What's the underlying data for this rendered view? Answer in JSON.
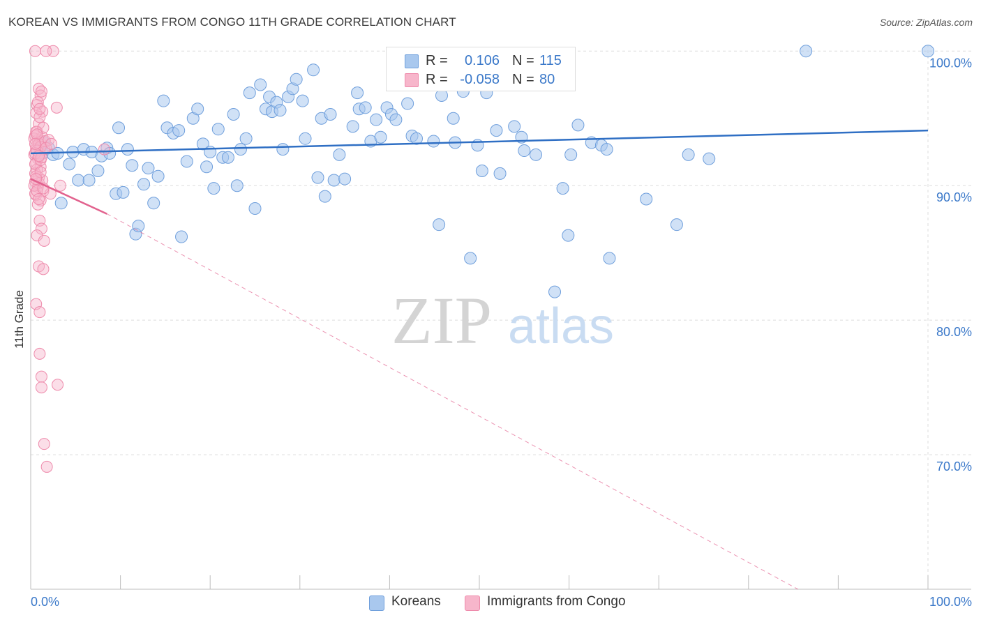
{
  "title": "KOREAN VS IMMIGRANTS FROM CONGO 11TH GRADE CORRELATION CHART",
  "source": "Source: ZipAtlas.com",
  "watermark": {
    "zip": "ZIP",
    "atlas": "atlas"
  },
  "legend": {
    "rows": [
      {
        "r_label": "R =",
        "r_value": "0.106",
        "n_label": "N =",
        "n_value": "115"
      },
      {
        "r_label": "R =",
        "r_value": "-0.058",
        "n_label": "N =",
        "n_value": "80"
      }
    ]
  },
  "bottom_legend": {
    "koreans": "Koreans",
    "congo": "Immigrants from Congo"
  },
  "colors": {
    "korean_fill": "#a9c8ee",
    "korean_stroke": "#6f9fdc",
    "korean_line": "#2f6fc4",
    "congo_fill": "#f7b6cb",
    "congo_stroke": "#ee8aab",
    "congo_line": "#e2628e",
    "axis_text": "#3a78c9",
    "grid": "#dcdcdc"
  },
  "chart_data": {
    "type": "scatter",
    "title": "KOREAN VS IMMIGRANTS FROM CONGO 11TH GRADE CORRELATION CHART",
    "xlabel": "",
    "ylabel": "11th Grade",
    "xlim": [
      0,
      100
    ],
    "ylim": [
      60,
      101
    ],
    "x_tick_labels": [
      "0.0%",
      "100.0%"
    ],
    "y_tick_labels": [
      {
        "value": 70,
        "label": "70.0%"
      },
      {
        "value": 80,
        "label": "80.0%"
      },
      {
        "value": 90,
        "label": "90.0%"
      },
      {
        "value": 100,
        "label": "100.0%"
      }
    ],
    "grid": true,
    "series": [
      {
        "name": "Koreans",
        "trend": {
          "x": [
            0,
            100
          ],
          "y": [
            92.4,
            94.1
          ],
          "style": "solid"
        },
        "points": [
          [
            1.0,
            92.7
          ],
          [
            1.3,
            92.4
          ],
          [
            1.5,
            93.2
          ],
          [
            2.0,
            92.8
          ],
          [
            2.5,
            92.3
          ],
          [
            3.0,
            92.4
          ],
          [
            3.4,
            88.7
          ],
          [
            4.3,
            91.6
          ],
          [
            4.7,
            92.5
          ],
          [
            5.3,
            90.4
          ],
          [
            5.9,
            92.7
          ],
          [
            6.5,
            90.4
          ],
          [
            6.8,
            92.5
          ],
          [
            7.5,
            91.1
          ],
          [
            7.9,
            92.2
          ],
          [
            8.5,
            92.8
          ],
          [
            8.8,
            92.4
          ],
          [
            9.5,
            89.4
          ],
          [
            9.8,
            94.3
          ],
          [
            10.3,
            89.5
          ],
          [
            10.8,
            92.7
          ],
          [
            11.3,
            91.5
          ],
          [
            11.7,
            86.4
          ],
          [
            12.0,
            87.0
          ],
          [
            12.6,
            90.1
          ],
          [
            13.1,
            91.3
          ],
          [
            13.7,
            88.7
          ],
          [
            14.2,
            90.7
          ],
          [
            14.8,
            96.3
          ],
          [
            15.2,
            94.3
          ],
          [
            15.9,
            93.9
          ],
          [
            16.5,
            94.1
          ],
          [
            16.8,
            86.2
          ],
          [
            17.4,
            91.8
          ],
          [
            18.1,
            95.0
          ],
          [
            18.6,
            95.7
          ],
          [
            19.2,
            93.1
          ],
          [
            19.6,
            91.4
          ],
          [
            20.0,
            92.5
          ],
          [
            20.4,
            89.8
          ],
          [
            20.9,
            94.2
          ],
          [
            21.4,
            92.1
          ],
          [
            22.0,
            92.1
          ],
          [
            22.6,
            95.3
          ],
          [
            23.0,
            90.0
          ],
          [
            23.4,
            92.7
          ],
          [
            24.0,
            93.5
          ],
          [
            24.4,
            96.9
          ],
          [
            25.0,
            88.3
          ],
          [
            25.6,
            97.5
          ],
          [
            26.2,
            95.7
          ],
          [
            26.6,
            96.6
          ],
          [
            26.9,
            95.5
          ],
          [
            27.4,
            96.2
          ],
          [
            27.8,
            95.6
          ],
          [
            28.1,
            92.7
          ],
          [
            28.7,
            96.6
          ],
          [
            29.2,
            97.2
          ],
          [
            29.6,
            97.9
          ],
          [
            30.3,
            96.3
          ],
          [
            30.6,
            93.5
          ],
          [
            31.5,
            98.6
          ],
          [
            32.0,
            90.6
          ],
          [
            32.4,
            95.0
          ],
          [
            32.8,
            89.2
          ],
          [
            33.4,
            95.3
          ],
          [
            33.8,
            90.4
          ],
          [
            34.4,
            92.3
          ],
          [
            35.0,
            90.5
          ],
          [
            35.9,
            94.4
          ],
          [
            36.4,
            96.9
          ],
          [
            36.6,
            95.7
          ],
          [
            37.3,
            95.8
          ],
          [
            37.9,
            93.3
          ],
          [
            38.5,
            94.9
          ],
          [
            39.0,
            93.6
          ],
          [
            39.7,
            95.8
          ],
          [
            40.2,
            95.3
          ],
          [
            40.7,
            94.9
          ],
          [
            42.0,
            96.1
          ],
          [
            42.5,
            93.7
          ],
          [
            43.0,
            93.5
          ],
          [
            44.9,
            93.3
          ],
          [
            45.5,
            87.1
          ],
          [
            45.8,
            96.7
          ],
          [
            47.1,
            95.0
          ],
          [
            47.3,
            93.2
          ],
          [
            48.2,
            97.0
          ],
          [
            49.0,
            84.6
          ],
          [
            49.8,
            93.0
          ],
          [
            50.3,
            91.1
          ],
          [
            50.8,
            96.9
          ],
          [
            51.9,
            94.1
          ],
          [
            52.3,
            90.9
          ],
          [
            53.9,
            94.4
          ],
          [
            54.7,
            93.6
          ],
          [
            55.0,
            92.6
          ],
          [
            56.3,
            92.3
          ],
          [
            58.4,
            82.1
          ],
          [
            59.3,
            89.8
          ],
          [
            59.9,
            86.3
          ],
          [
            60.2,
            92.3
          ],
          [
            61.0,
            94.5
          ],
          [
            62.5,
            93.2
          ],
          [
            63.6,
            93.0
          ],
          [
            64.2,
            92.7
          ],
          [
            64.5,
            84.6
          ],
          [
            68.6,
            89.0
          ],
          [
            72.0,
            87.1
          ],
          [
            73.3,
            92.3
          ],
          [
            75.6,
            92.0
          ],
          [
            86.4,
            100.0
          ],
          [
            100.0,
            100.0
          ]
        ]
      },
      {
        "name": "Immigrants from Congo",
        "trend": {
          "x": [
            0,
            8.5
          ],
          "y": [
            90.5,
            87.9
          ],
          "style": "solid"
        },
        "trend_extended": {
          "x": [
            8.5,
            85.5
          ],
          "y": [
            87.9,
            60.0
          ],
          "style": "dashed"
        },
        "points": [
          [
            0.5,
            100.0
          ],
          [
            2.5,
            100.0
          ],
          [
            1.7,
            100.0
          ],
          [
            0.9,
            97.2
          ],
          [
            1.1,
            96.7
          ],
          [
            0.7,
            96.0
          ],
          [
            1.3,
            95.5
          ],
          [
            0.6,
            95.4
          ],
          [
            2.9,
            95.8
          ],
          [
            0.9,
            94.6
          ],
          [
            0.7,
            94.0
          ],
          [
            0.5,
            93.7
          ],
          [
            0.8,
            93.4
          ],
          [
            1.1,
            93.2
          ],
          [
            0.6,
            92.9
          ],
          [
            1.5,
            92.7
          ],
          [
            0.4,
            92.3
          ],
          [
            0.8,
            92.0
          ],
          [
            0.6,
            91.7
          ],
          [
            1.1,
            91.4
          ],
          [
            0.7,
            91.2
          ],
          [
            0.5,
            90.9
          ],
          [
            0.9,
            90.6
          ],
          [
            0.5,
            90.3
          ],
          [
            3.3,
            90.0
          ],
          [
            0.8,
            89.9
          ],
          [
            1.4,
            89.6
          ],
          [
            0.6,
            89.3
          ],
          [
            2.2,
            89.4
          ],
          [
            1.1,
            88.9
          ],
          [
            1.0,
            87.4
          ],
          [
            1.2,
            86.8
          ],
          [
            0.7,
            86.3
          ],
          [
            1.5,
            85.9
          ],
          [
            0.9,
            84.0
          ],
          [
            1.4,
            83.8
          ],
          [
            0.6,
            81.2
          ],
          [
            1.0,
            80.6
          ],
          [
            1.0,
            77.5
          ],
          [
            1.2,
            75.8
          ],
          [
            1.2,
            75.0
          ],
          [
            3.0,
            75.2
          ],
          [
            1.5,
            70.8
          ],
          [
            1.8,
            69.1
          ],
          [
            8.2,
            92.7
          ],
          [
            0.4,
            93.5
          ],
          [
            0.6,
            92.7
          ],
          [
            1.0,
            92.4
          ],
          [
            0.5,
            91.6
          ],
          [
            1.3,
            93.6
          ],
          [
            0.9,
            93.1
          ],
          [
            1.1,
            92.9
          ],
          [
            0.7,
            92.6
          ],
          [
            1.6,
            93.3
          ],
          [
            2.0,
            93.4
          ],
          [
            0.6,
            94.0
          ],
          [
            0.9,
            90.2
          ],
          [
            0.5,
            89.4
          ],
          [
            1.3,
            90.4
          ],
          [
            0.8,
            88.6
          ],
          [
            0.4,
            90.0
          ],
          [
            0.7,
            89.6
          ],
          [
            1.1,
            91.9
          ],
          [
            0.5,
            92.4
          ],
          [
            1.4,
            94.3
          ],
          [
            1.0,
            95.1
          ],
          [
            0.7,
            93.8
          ],
          [
            1.2,
            92.1
          ],
          [
            0.6,
            90.7
          ],
          [
            0.9,
            89.0
          ],
          [
            1.2,
            97.0
          ],
          [
            0.8,
            96.2
          ],
          [
            1.0,
            95.7
          ],
          [
            0.5,
            93.1
          ],
          [
            1.7,
            92.8
          ],
          [
            2.3,
            93.1
          ],
          [
            0.9,
            92.2
          ],
          [
            1.1,
            91.0
          ],
          [
            0.6,
            90.5
          ],
          [
            1.4,
            89.8
          ]
        ]
      }
    ]
  }
}
